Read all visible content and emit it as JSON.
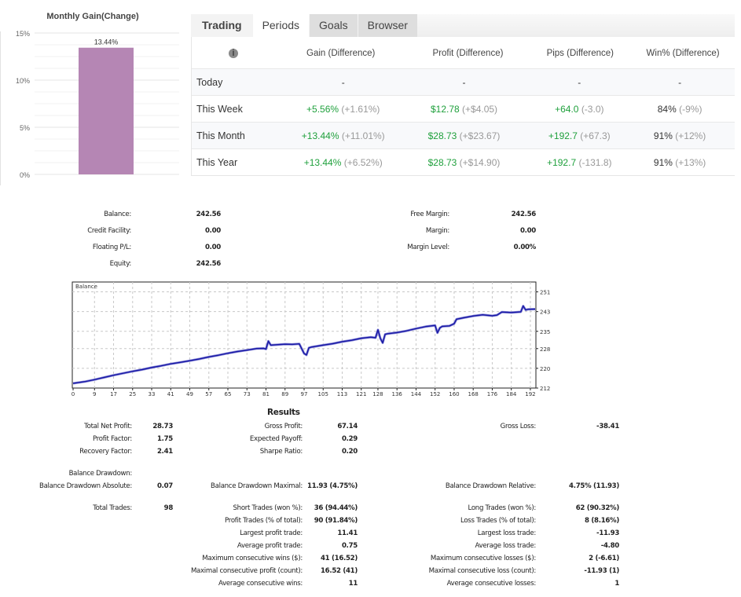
{
  "monthly_gain_chart": {
    "chart_data": {
      "type": "bar",
      "title": "Monthly Gain(Change)",
      "categories": [
        ""
      ],
      "values": [
        13.44
      ],
      "data_labels": [
        "13.44%"
      ],
      "y_ticks": [
        "0%",
        "5%",
        "10%",
        "15%"
      ],
      "ylim": [
        0,
        15
      ],
      "bar_color": "#b586b4",
      "grid": true
    }
  },
  "tabs": [
    {
      "label": "Trading",
      "state": "bold"
    },
    {
      "label": "Periods",
      "state": "active"
    },
    {
      "label": "Goals",
      "state": "inactive"
    },
    {
      "label": "Browser",
      "state": "inactive"
    }
  ],
  "periods_table": {
    "info_icon": "i",
    "headers": [
      "Gain (Difference)",
      "Profit (Difference)",
      "Pips (Difference)",
      "Win% (Difference)"
    ],
    "rows": [
      {
        "period": "Today",
        "gain": "-",
        "gain_diff": "",
        "profit": "-",
        "profit_diff": "",
        "pips": "-",
        "pips_diff": "",
        "win": "-",
        "win_diff": ""
      },
      {
        "period": "This Week",
        "gain": "+5.56%",
        "gain_diff": "(+1.61%)",
        "profit": "$12.78",
        "profit_diff": "(+$4.05)",
        "pips": "+64.0",
        "pips_diff": "(-3.0)",
        "win": "84%",
        "win_diff": "(-9%)"
      },
      {
        "period": "This Month",
        "gain": "+13.44%",
        "gain_diff": "(+11.01%)",
        "profit": "$28.73",
        "profit_diff": "(+$23.67)",
        "pips": "+192.7",
        "pips_diff": "(+67.3)",
        "win": "91%",
        "win_diff": "(+12%)"
      },
      {
        "period": "This Year",
        "gain": "+13.44%",
        "gain_diff": "(+6.52%)",
        "profit": "$28.73",
        "profit_diff": "(+$14.90)",
        "pips": "+192.7",
        "pips_diff": "(-131.8)",
        "win": "91%",
        "win_diff": "(+13%)"
      }
    ],
    "colors": {
      "positive": "#1fa03c",
      "diff": "#999999"
    }
  },
  "account": {
    "left": [
      {
        "label": "Balance:",
        "value": "242.56"
      },
      {
        "label": "Credit Facility:",
        "value": "0.00"
      },
      {
        "label": "Floating P/L:",
        "value": "0.00"
      },
      {
        "label": "Equity:",
        "value": "242.56"
      }
    ],
    "right": [
      {
        "label": "Free Margin:",
        "value": "242.56"
      },
      {
        "label": "Margin:",
        "value": "0.00"
      },
      {
        "label": "Margin Level:",
        "value": "0.00%"
      }
    ]
  },
  "balance_chart": {
    "chart_data": {
      "type": "line",
      "title": "Balance",
      "x_ticks": [
        "0",
        "9",
        "17",
        "25",
        "33",
        "41",
        "49",
        "57",
        "65",
        "73",
        "81",
        "89",
        "97",
        "105",
        "113",
        "121",
        "128",
        "136",
        "144",
        "152",
        "160",
        "168",
        "176",
        "184",
        "192"
      ],
      "y_ticks": [
        "212",
        "220",
        "228",
        "235",
        "243",
        "251"
      ],
      "xlim": [
        0,
        194
      ],
      "ylim": [
        212,
        255
      ],
      "line_color": "#1a1aa6",
      "grid": "dashed",
      "series": [
        {
          "name": "Balance",
          "x": [
            0,
            5,
            9,
            13,
            17,
            21,
            25,
            29,
            33,
            37,
            41,
            45,
            49,
            53,
            57,
            61,
            65,
            69,
            73,
            77,
            80,
            81,
            82,
            83,
            86,
            89,
            92,
            95,
            97,
            98,
            99,
            100,
            105,
            109,
            113,
            117,
            121,
            125,
            127,
            128,
            129,
            130,
            131,
            132,
            136,
            140,
            144,
            148,
            152,
            153,
            154,
            155,
            158,
            160,
            161,
            164,
            168,
            172,
            176,
            178,
            180,
            184,
            188,
            189,
            190,
            191,
            194
          ],
          "y": [
            213.9,
            214.6,
            215.4,
            216.3,
            217.2,
            218.0,
            218.8,
            219.5,
            220.3,
            221.0,
            221.8,
            222.4,
            223.1,
            223.8,
            224.6,
            225.3,
            226.1,
            226.8,
            227.4,
            228.0,
            228.1,
            227.8,
            231.0,
            229.4,
            229.6,
            229.8,
            229.7,
            229.9,
            226.0,
            225.4,
            228.3,
            228.6,
            229.4,
            230.0,
            230.8,
            231.4,
            232.2,
            232.6,
            232.4,
            235.6,
            232.2,
            230.3,
            233.8,
            234.0,
            234.5,
            235.2,
            236.1,
            236.9,
            237.4,
            234.4,
            236.4,
            237.0,
            237.2,
            238.1,
            239.9,
            240.5,
            241.2,
            241.7,
            241.3,
            241.6,
            242.8,
            242.6,
            242.9,
            245.3,
            243.7,
            243.9,
            244.0
          ]
        }
      ]
    }
  },
  "results": {
    "title": "Results",
    "col1": [
      {
        "label": "Total Net Profit:",
        "value": "28.73"
      },
      {
        "label": "Profit Factor:",
        "value": "1.75"
      },
      {
        "label": "Recovery Factor:",
        "value": "2.41"
      }
    ],
    "col2": [
      {
        "label": "Gross Profit:",
        "value": "67.14"
      },
      {
        "label": "Expected Payoff:",
        "value": "0.29"
      },
      {
        "label": "Sharpe Ratio:",
        "value": "0.20"
      }
    ],
    "gross_loss": {
      "label": "Gross Loss:",
      "value": "-38.41"
    },
    "drawdown_header": "Balance Drawdown:",
    "drawdown_absolute": {
      "label": "Balance Drawdown Absolute:",
      "value": "0.07"
    },
    "drawdown_maximal": {
      "label": "Balance Drawdown Maximal:",
      "value": "11.93 (4.75%)"
    },
    "drawdown_relative": {
      "label": "Balance Drawdown Relative:",
      "value": "4.75% (11.93)"
    },
    "total_trades": {
      "label": "Total Trades:",
      "value": "98"
    },
    "mid": [
      {
        "label": "Short Trades (won %):",
        "value": "36 (94.44%)"
      },
      {
        "label": "Profit Trades (% of total):",
        "value": "90 (91.84%)"
      },
      {
        "label": "Largest profit trade:",
        "value": "11.41"
      },
      {
        "label": "Average profit trade:",
        "value": "0.75"
      },
      {
        "label": "Maximum consecutive wins ($):",
        "value": "41 (16.52)"
      },
      {
        "label": "Maximal consecutive profit (count):",
        "value": "16.52 (41)"
      },
      {
        "label": "Average consecutive wins:",
        "value": "11"
      }
    ],
    "right": [
      {
        "label": "Long Trades (won %):",
        "value": "62 (90.32%)"
      },
      {
        "label": "Loss Trades (% of total):",
        "value": "8 (8.16%)"
      },
      {
        "label": "Largest loss trade:",
        "value": "-11.93"
      },
      {
        "label": "Average loss trade:",
        "value": "-4.80"
      },
      {
        "label": "Maximum consecutive losses ($):",
        "value": "2 (-6.61)"
      },
      {
        "label": "Maximal consecutive loss (count):",
        "value": "-11.93 (1)"
      },
      {
        "label": "Average consecutive losses:",
        "value": "1"
      }
    ]
  }
}
